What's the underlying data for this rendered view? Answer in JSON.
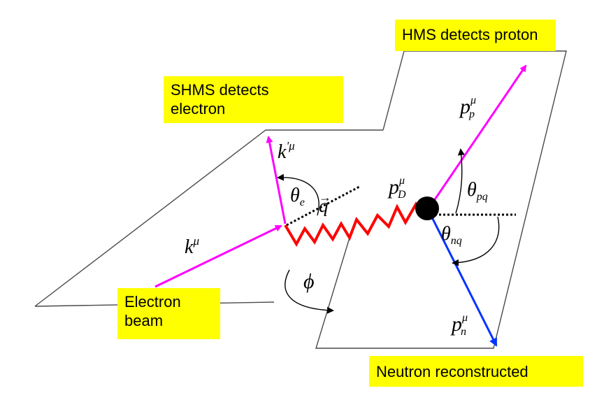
{
  "labels": {
    "hms": "HMS detects proton",
    "shms_line1": "SHMS detects",
    "shms_line2": "electron",
    "beam_line1": "Electron",
    "beam_line2": "beam",
    "neutron": "Neutron reconstructed"
  },
  "symbols": {
    "k_base": "k",
    "k_sup": "μ",
    "kprime_base": "k",
    "kprime_sup": "'μ",
    "theta_e_base": "θ",
    "theta_e_sub": "e",
    "q": "q",
    "q_arrow": "→",
    "pD_base": "p",
    "pD_sup": "μ",
    "pD_sub": "D",
    "pp_base": "p",
    "pp_sup": "μ",
    "pp_sub": "p",
    "theta_pq_base": "θ",
    "theta_pq_sub": "pq",
    "theta_nq_base": "θ",
    "theta_nq_sub": "nq",
    "pn_base": "p",
    "pn_sup": "μ",
    "pn_sub": "n",
    "phi": "ϕ"
  },
  "colors": {
    "label_bg": "#ffff00",
    "electron": "#ff00ff",
    "photon": "#ff0000",
    "neutron": "#0033ff",
    "deuteron": "#000000",
    "plane_stroke": "#4a4a4a"
  }
}
